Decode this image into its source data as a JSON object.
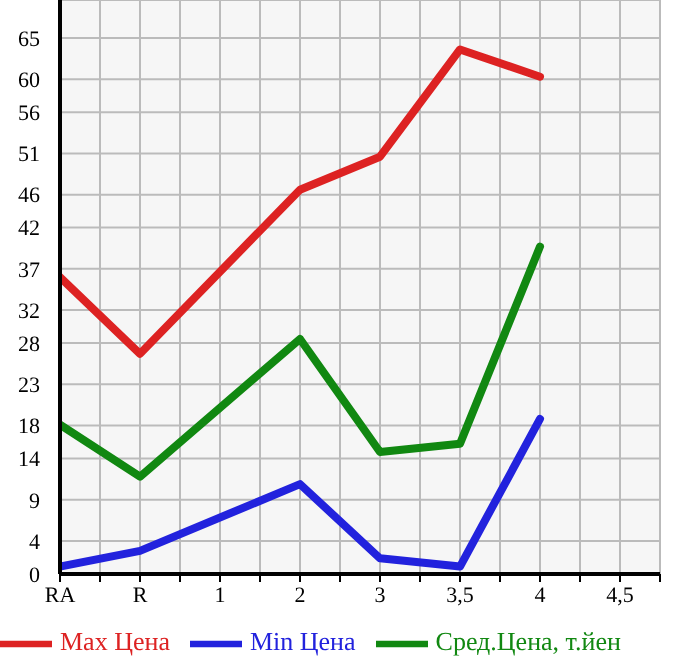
{
  "chart_data": {
    "type": "line",
    "categories": [
      "RA",
      "R",
      "1",
      "2",
      "3",
      "3,5",
      "4",
      "4,5"
    ],
    "series": [
      {
        "name": "Max Цена",
        "color": "#dd2222",
        "values": [
          36,
          26.7,
          null,
          46.6,
          50.6,
          63.6,
          60.3,
          null
        ]
      },
      {
        "name": "Min Цена",
        "color": "#2222dd",
        "values": [
          0.9,
          2.8,
          null,
          10.9,
          1.9,
          0.9,
          18.8,
          null
        ]
      },
      {
        "name": "Сред.Цена, т.йен",
        "color": "#118811",
        "values": [
          18.1,
          11.8,
          null,
          28.5,
          14.8,
          15.8,
          39.7,
          null
        ]
      }
    ],
    "ylim": [
      0,
      69.6
    ],
    "yticks": [
      0,
      4,
      9,
      14,
      18,
      23,
      28,
      32,
      37,
      42,
      46,
      51,
      56,
      60,
      65
    ],
    "grid": true,
    "legend": "bottom",
    "marker": "none",
    "line_style": "solid"
  }
}
